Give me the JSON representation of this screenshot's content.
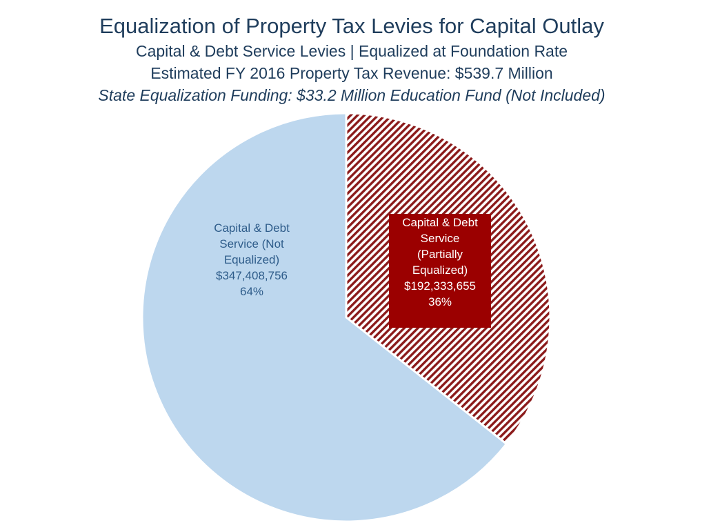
{
  "chart_data": {
    "type": "pie",
    "title": "Equalization of Property Tax Levies for Capital Outlay",
    "subtitles": [
      "Capital & Debt Service Levies | Equalized at Foundation Rate",
      "Estimated FY 2016 Property Tax Revenue: $539.7 Million",
      "State Equalization Funding: $33.2 Million Education Fund (Not Included)"
    ],
    "slices": [
      {
        "label_lines": [
          "Capital & Debt",
          "Service",
          "(Partially",
          "Equalized)"
        ],
        "value": 192333655,
        "value_label": "$192,333,655",
        "percent_label": "36%",
        "color": "#9b1b1b",
        "pattern": "diagonal-hatch",
        "label_background": "#9b0000",
        "label_color": "#ffffff"
      },
      {
        "label_lines": [
          "Capital & Debt",
          "Service (Not",
          "Equalized)"
        ],
        "value": 347408756,
        "value_label": "$347,408,756",
        "percent_label": "64%",
        "color": "#bdd7ee",
        "pattern": "solid",
        "label_color": "#2e5c8a"
      }
    ],
    "start_angle": "12 o'clock",
    "direction": "clockwise",
    "legend": "none"
  }
}
